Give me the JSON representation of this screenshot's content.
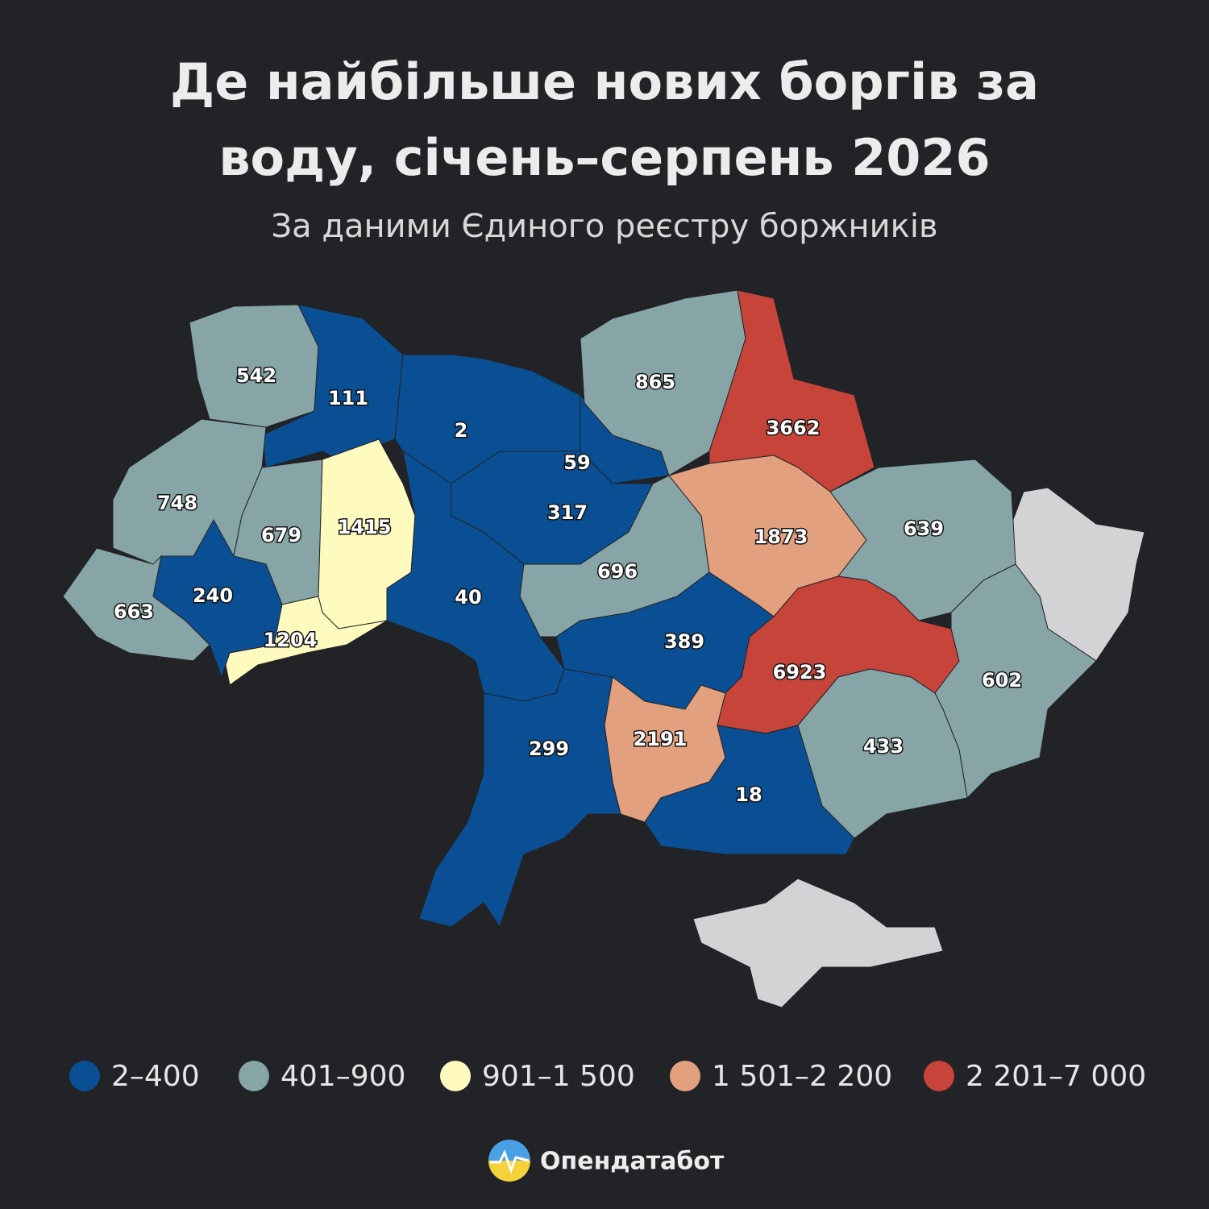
{
  "header": {
    "title": "Де найбільше нових боргів за воду, січень–серпень 2026",
    "subtitle": "За даними Єдиного реєстру боржників"
  },
  "map": {
    "regions": [
      {
        "value": 542,
        "color": "#87a5a6"
      },
      {
        "value": 111,
        "color": "#0a4f93"
      },
      {
        "value": 2,
        "color": "#0a4f93"
      },
      {
        "value": 59,
        "color": "#0a4f93"
      },
      {
        "value": 317,
        "color": "#0a4f93"
      },
      {
        "value": 865,
        "color": "#87a5a6"
      },
      {
        "value": 3662,
        "color": "#c6443a"
      },
      {
        "value": 748,
        "color": "#87a5a6"
      },
      {
        "value": 679,
        "color": "#87a5a6"
      },
      {
        "value": 1415,
        "color": "#fffbbf"
      },
      {
        "value": 1873,
        "color": "#e3a07e"
      },
      {
        "value": 639,
        "color": "#87a5a6"
      },
      {
        "value": 240,
        "color": "#0a4f93"
      },
      {
        "value": 663,
        "color": "#87a5a6"
      },
      {
        "value": 1204,
        "color": "#fffbbf"
      },
      {
        "value": 40,
        "color": "#0a4f93"
      },
      {
        "value": 696,
        "color": "#87a5a6"
      },
      {
        "value": 389,
        "color": "#0a4f93"
      },
      {
        "value": 6923,
        "color": "#c6443a"
      },
      {
        "value": 602,
        "color": "#87a5a6"
      },
      {
        "value": 299,
        "color": "#0a4f93"
      },
      {
        "value": 2191,
        "color": "#e3a07e"
      },
      {
        "value": 433,
        "color": "#87a5a6"
      },
      {
        "value": 18,
        "color": "#0a4f93"
      }
    ]
  },
  "legend": [
    {
      "label": "2–400",
      "color": "#0a4f93"
    },
    {
      "label": "401–900",
      "color": "#87a5a6"
    },
    {
      "label": "901–1 500",
      "color": "#fffbbf"
    },
    {
      "label": "1 501–2 200",
      "color": "#e3a07e"
    },
    {
      "label": "2 201–7 000",
      "color": "#c6443a"
    }
  ],
  "footer": {
    "brand": "Опендатабот"
  }
}
